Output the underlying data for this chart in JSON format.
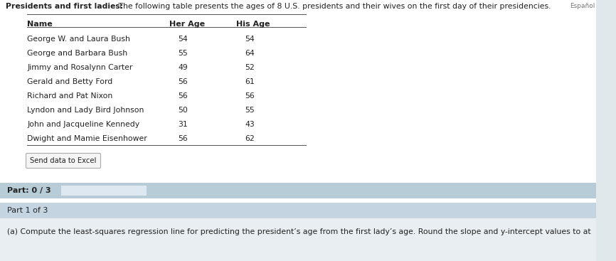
{
  "title_bold": "Presidents and first ladies:",
  "title_normal": " The following table presents the ages of 8 U.S. presidents and their wives on the first day of their presidencies.",
  "col_headers": [
    "Name",
    "Her Age",
    "His Age"
  ],
  "rows": [
    [
      "George W. and Laura Bush",
      "54",
      "54"
    ],
    [
      "George and Barbara Bush",
      "55",
      "64"
    ],
    [
      "Jimmy and Rosalynn Carter",
      "49",
      "52"
    ],
    [
      "Gerald and Betty Ford",
      "56",
      "61"
    ],
    [
      "Richard and Pat Nixon",
      "56",
      "56"
    ],
    [
      "Lyndon and Lady Bird Johnson",
      "50",
      "55"
    ],
    [
      "John and Jacqueline Kennedy",
      "31",
      "43"
    ],
    [
      "Dwight and Mamie Eisenhower",
      "56",
      "62"
    ]
  ],
  "button_text": "Send data to Excel",
  "part_label": "Part: 0 / 3",
  "part1_label": "Part 1 of 3",
  "part1_text": "(a) Compute the least-squares regression line for predicting the president’s age from the first lady’s age. Round the slope and y-intercept values to at",
  "espanol_text": "Español",
  "bg_color": "#ffffff",
  "part_bar_color": "#b8ccd8",
  "part_fill_color": "#dde8f0",
  "part1_bar_color": "#c4d4e0",
  "part1_content_color": "#d8e4ec",
  "sidebar_color": "#e0e8ec",
  "line_color": "#555555",
  "text_color": "#222222",
  "espanol_color": "#777777",
  "button_edge_color": "#aaaaaa",
  "button_face_color": "#f5f5f5"
}
